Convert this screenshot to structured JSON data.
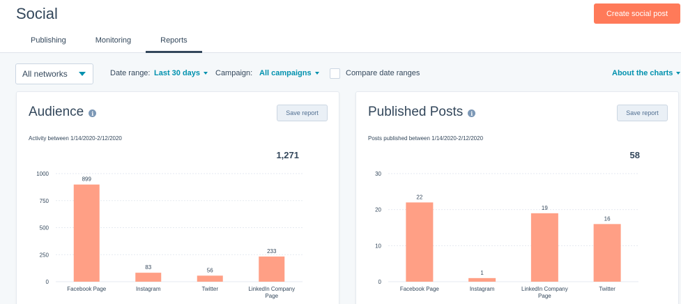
{
  "header": {
    "title": "Social",
    "create_button": "Create social post",
    "tabs": [
      {
        "label": "Publishing",
        "active": false
      },
      {
        "label": "Monitoring",
        "active": false
      },
      {
        "label": "Reports",
        "active": true
      }
    ]
  },
  "filters": {
    "network_select": "All networks",
    "date_range_label": "Date range:",
    "date_range_value": "Last 30 days",
    "campaign_label": "Campaign:",
    "campaign_value": "All campaigns",
    "compare_label": "Compare date ranges",
    "compare_checked": false,
    "about_link": "About the charts"
  },
  "colors": {
    "accent": "#ff7a59",
    "bar": "#ff9f85",
    "link": "#0091ae",
    "text": "#33475b"
  },
  "cards": [
    {
      "title": "Audience",
      "save_label": "Save report",
      "subtitle": "Activity between 1/14/2020-2/12/2020",
      "total": "1,271"
    },
    {
      "title": "Published Posts",
      "save_label": "Save report",
      "subtitle": "Posts published between 1/14/2020-2/12/2020",
      "total": "58"
    }
  ],
  "chart_data": [
    {
      "type": "bar",
      "categories": [
        "Facebook Page",
        "Instagram",
        "Twitter",
        "LinkedIn Company Page"
      ],
      "values": [
        899,
        83,
        56,
        233
      ],
      "ylim": [
        0,
        1000
      ],
      "yticks": [
        0,
        250,
        500,
        750,
        1000
      ],
      "grid": true
    },
    {
      "type": "bar",
      "categories": [
        "Facebook Page",
        "Instagram",
        "LinkedIn Company Page",
        "Twitter"
      ],
      "values": [
        22,
        1,
        19,
        16
      ],
      "ylim": [
        0,
        30
      ],
      "yticks": [
        0,
        10,
        20,
        30
      ],
      "grid": true
    }
  ]
}
